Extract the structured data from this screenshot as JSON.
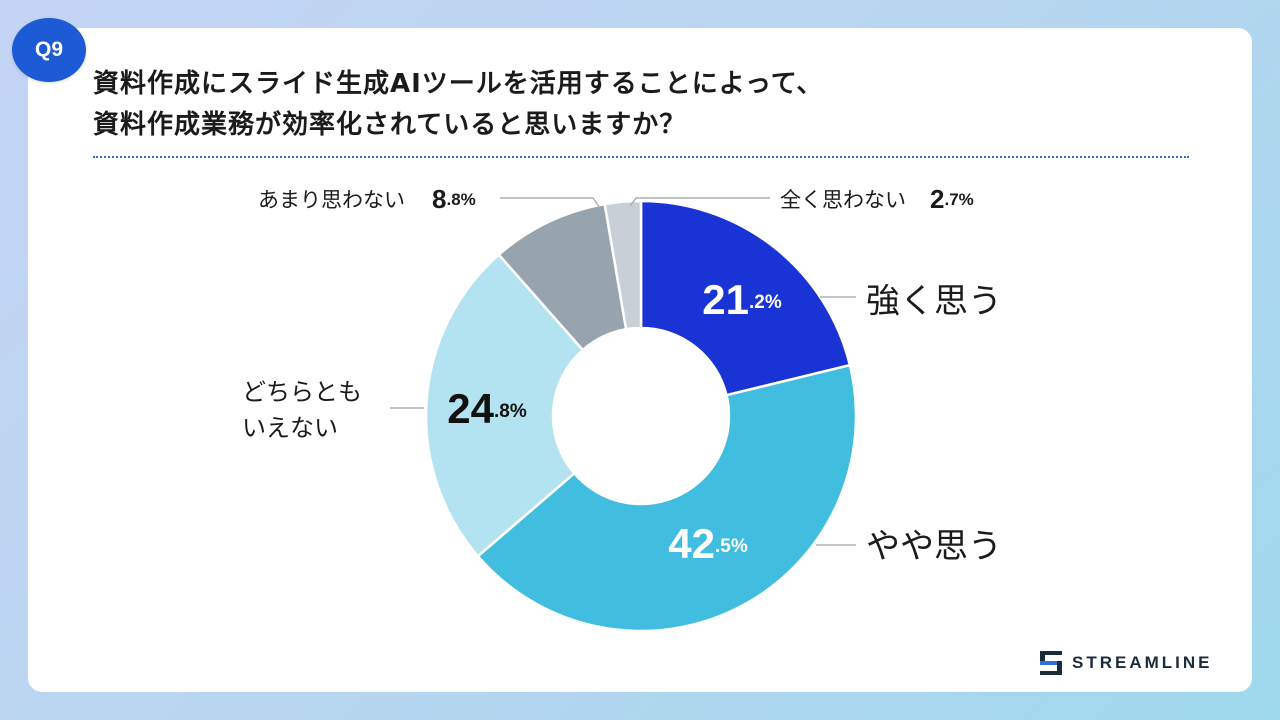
{
  "badge": "Q9",
  "title_lines": [
    "資料作成にスライド生成AIツールを活用することによって、",
    "資料作成業務が効率化されていると思いますか？"
  ],
  "brand": "STREAMLINE",
  "colors": {
    "accent": "#1d5ad6",
    "title_rule": "#2e6fd8"
  },
  "chart_data": {
    "type": "pie",
    "style": "donut",
    "slices": [
      {
        "label": "強く思う",
        "value": 21.2,
        "int_text": "21",
        "dec_text": ".2%",
        "color": "#1a33d4"
      },
      {
        "label": "やや思う",
        "value": 42.5,
        "int_text": "42",
        "dec_text": ".5%",
        "color": "#41bde0"
      },
      {
        "label": "どちらともいえない",
        "value": 24.8,
        "int_text": "24",
        "dec_text": ".8%",
        "color": "#b3e3f1"
      },
      {
        "label": "あまり思わない",
        "value": 8.8,
        "int_text": "8",
        "dec_text": ".8%",
        "color": "#97a3ad"
      },
      {
        "label": "全く思わない",
        "value": 2.7,
        "int_text": "2",
        "dec_text": ".7%",
        "color": "#c8cfd6"
      }
    ],
    "start_angle": "12 o'clock",
    "direction": "clockwise"
  }
}
